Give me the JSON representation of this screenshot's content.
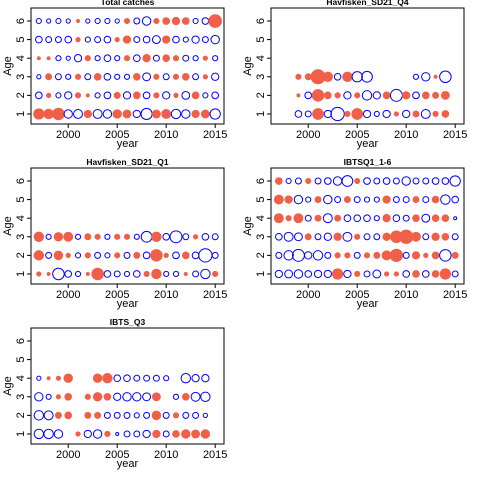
{
  "chart_data": [
    {
      "type": "bubble",
      "title": "Total catches",
      "xlabel": "year",
      "ylabel": "Age",
      "x": [
        1997,
        1998,
        1999,
        2000,
        2001,
        2002,
        2003,
        2004,
        2005,
        2006,
        2007,
        2008,
        2009,
        2010,
        2011,
        2012,
        2013,
        2014,
        2015
      ],
      "ages": [
        1,
        2,
        3,
        4,
        5,
        6
      ],
      "values": [
        [
          1.2,
          1.0,
          1.5,
          -0.8,
          -0.9,
          0.6,
          -0.9,
          -0.8,
          0.8,
          0.7,
          -0.6,
          -1.4,
          0.7,
          0.9,
          -1.0,
          -0.8,
          0.6,
          0.7,
          -1.2
        ],
        [
          -0.5,
          0.2,
          -0.3,
          -0.6,
          0.3,
          0.1,
          -0.3,
          -0.5,
          0.4,
          -0.6,
          0.5,
          -0.5,
          0.3,
          -0.6,
          0.2,
          -0.7,
          0.5,
          -0.3,
          -0.5
        ],
        [
          -0.2,
          0.4,
          -0.4,
          -0.3,
          0.3,
          -0.4,
          0.5,
          -0.5,
          -0.3,
          -0.3,
          0.5,
          -0.7,
          0.3,
          -0.4,
          0.3,
          0.5,
          -0.4,
          0.2,
          -0.6
        ],
        [
          0.1,
          0.1,
          -0.3,
          -0.2,
          -0.6,
          0.3,
          -0.3,
          -0.5,
          -0.3,
          0.3,
          -0.5,
          0.6,
          -0.4,
          0.5,
          0.3,
          -0.4,
          -0.3,
          0.2,
          -0.3
        ],
        [
          -0.5,
          -0.4,
          -0.4,
          -0.5,
          0.2,
          -0.3,
          -0.4,
          -0.5,
          0.2,
          0.6,
          -0.4,
          -0.5,
          -0.7,
          0.6,
          -0.5,
          -0.3,
          -0.6,
          -0.4,
          -0.8
        ],
        [
          -0.3,
          -0.2,
          -0.3,
          -0.2,
          0.1,
          -0.2,
          -0.3,
          -0.3,
          -0.2,
          0.3,
          -0.4,
          -0.8,
          0.3,
          0.5,
          0.6,
          0.5,
          -0.3,
          -0.5,
          1.8
        ]
      ],
      "xlim": [
        1996.2,
        2015.9
      ],
      "ylim": [
        0.46,
        6.7
      ],
      "xticks": [
        2000,
        2005,
        2010,
        2015
      ],
      "yticks": [
        1,
        2,
        3,
        4,
        5,
        6
      ],
      "pos_color": "#f06048",
      "neg_color": "#0000ff"
    },
    {
      "type": "bubble",
      "title": "Havfisken_SD21_Q4",
      "xlabel": "year",
      "ylabel": "Age",
      "x": [
        1999,
        2000,
        2001,
        2002,
        2003,
        2004,
        2005,
        2006,
        2007,
        2008,
        2009,
        2010,
        2011,
        2012,
        2013,
        2014
      ],
      "ages": [
        1,
        2,
        3
      ],
      "values": [
        [
          -0.5,
          -0.4,
          1.3,
          -0.6,
          -2.0,
          0.3,
          1.3,
          -0.6,
          -0.3,
          -0.6,
          0.2,
          -0.6,
          0.4,
          -0.9,
          0.3,
          0.5
        ],
        [
          0.1,
          -0.5,
          1.5,
          0.5,
          0.3,
          -0.6,
          0.3,
          -1.0,
          -0.6,
          0.5,
          -1.6,
          0.6,
          -0.5,
          0.5,
          0.4,
          0.7
        ],
        [
          0.3,
          0.4,
          2.2,
          1.0,
          -0.5,
          1.0,
          -1.2,
          -1.3,
          null,
          null,
          null,
          null,
          -0.3,
          -0.8,
          0.1,
          -1.5
        ]
      ],
      "xlim": [
        1996.2,
        2015.9
      ],
      "ylim": [
        0.46,
        6.7
      ],
      "xticks": [
        2000,
        2005,
        2010,
        2015
      ],
      "yticks": [
        1,
        2,
        3,
        4,
        5,
        6
      ],
      "pos_color": "#f06048",
      "neg_color": "#0000ff"
    },
    {
      "type": "bubble",
      "title": "Havfisken_SD21_Q1",
      "xlabel": "year",
      "ylabel": "Age",
      "x": [
        1997,
        1998,
        1999,
        2000,
        2001,
        2002,
        2003,
        2004,
        2005,
        2006,
        2007,
        2008,
        2009,
        2010,
        2011,
        2012,
        2013,
        2014,
        2015
      ],
      "ages": [
        1,
        2,
        3
      ],
      "values": [
        [
          0.2,
          0.1,
          -1.5,
          -0.5,
          -0.3,
          0.1,
          1.5,
          -0.5,
          -0.4,
          -0.3,
          -0.5,
          0.3,
          1.0,
          -0.3,
          -0.3,
          0.1,
          -0.4,
          -1.0,
          0.3
        ],
        [
          1.0,
          -0.4,
          0.8,
          0.2,
          -0.3,
          0.3,
          -0.4,
          -0.3,
          0.3,
          -0.4,
          0.4,
          -0.5,
          1.5,
          0.2,
          -0.5,
          0.5,
          -0.5,
          -2.0,
          -0.4
        ],
        [
          1.0,
          -0.3,
          0.8,
          0.9,
          -0.3,
          0.4,
          0.3,
          -0.3,
          0.3,
          0.3,
          -0.3,
          -1.3,
          1.0,
          -0.5,
          -1.6,
          -0.4,
          0.2,
          -0.5,
          -0.4
        ]
      ],
      "xlim": [
        1996.2,
        2015.9
      ],
      "ylim": [
        0.46,
        6.7
      ],
      "xticks": [
        2000,
        2005,
        2010,
        2015
      ],
      "yticks": [
        1,
        2,
        3,
        4,
        5,
        6
      ],
      "pos_color": "#f06048",
      "neg_color": "#0000ff"
    },
    {
      "type": "bubble",
      "title": "IBTSQ1_1-6",
      "xlabel": "year",
      "ylabel": "Age",
      "x": [
        1997,
        1998,
        1999,
        2000,
        2001,
        2002,
        2003,
        2004,
        2005,
        2006,
        2007,
        2008,
        2009,
        2010,
        2011,
        2012,
        2013,
        2014,
        2015
      ],
      "ages": [
        1,
        2,
        3,
        4,
        5,
        6
      ],
      "values": [
        [
          -0.6,
          -0.7,
          -0.8,
          -0.5,
          -0.6,
          -0.6,
          1.2,
          -0.6,
          0.3,
          -0.4,
          -0.7,
          0.2,
          0.2,
          -0.5,
          0.5,
          -0.5,
          0.5,
          1.2,
          -0.4
        ],
        [
          -0.4,
          -1.0,
          -1.6,
          -0.6,
          -1.0,
          -0.4,
          0.3,
          0.3,
          -0.4,
          0.3,
          0.4,
          0.9,
          1.7,
          -0.4,
          0.6,
          0.2,
          0.5,
          -1.5,
          0.4
        ],
        [
          -0.5,
          -0.9,
          -0.7,
          0.4,
          -0.4,
          -0.6,
          0.6,
          -0.9,
          0.3,
          -0.4,
          -0.4,
          0.6,
          1.5,
          2.0,
          0.9,
          -0.4,
          0.6,
          0.5,
          -0.4
        ],
        [
          0.9,
          0.3,
          0.9,
          -0.4,
          0.4,
          -0.9,
          0.4,
          -0.5,
          -0.5,
          -0.5,
          -0.3,
          0.6,
          -0.5,
          -0.4,
          0.5,
          -0.7,
          0.5,
          0.5,
          -0.1
        ],
        [
          0.9,
          0.6,
          -0.8,
          -0.3,
          0.4,
          -0.8,
          -0.4,
          0.4,
          -0.4,
          -0.3,
          -0.3,
          0.6,
          -0.4,
          -0.4,
          0.4,
          -0.4,
          0.5,
          -1.0,
          -0.5
        ],
        [
          0.5,
          -0.3,
          -0.4,
          0.3,
          -0.4,
          -0.5,
          -0.8,
          -1.3,
          0.3,
          -0.5,
          -0.4,
          -0.5,
          -0.4,
          -0.8,
          -0.4,
          -0.4,
          -0.5,
          -0.5,
          -1.2
        ]
      ],
      "xlim": [
        1996.2,
        2015.9
      ],
      "ylim": [
        0.46,
        6.7
      ],
      "xticks": [
        2000,
        2005,
        2010,
        2015
      ],
      "yticks": [
        1,
        2,
        3,
        4,
        5,
        6
      ],
      "pos_color": "#f06048",
      "neg_color": "#0000ff"
    },
    {
      "type": "bubble",
      "title": "IBTS_Q3",
      "xlabel": "year",
      "ylabel": "Age",
      "x": [
        1997,
        1998,
        1999,
        2000,
        2001,
        2002,
        2003,
        2004,
        2005,
        2006,
        2007,
        2008,
        2009,
        2010,
        2011,
        2012,
        2013,
        2014
      ],
      "ages": [
        1,
        2,
        3,
        4
      ],
      "values": [
        [
          -1.0,
          -1.0,
          -0.8,
          null,
          0.2,
          -0.6,
          -0.8,
          0.3,
          -0.1,
          -0.4,
          -0.4,
          -0.6,
          0.6,
          -0.4,
          0.5,
          0.8,
          0.7,
          0.8
        ],
        [
          -1.0,
          -0.9,
          0.4,
          0.5,
          null,
          0.4,
          0.4,
          -0.4,
          -0.4,
          -0.4,
          -0.3,
          -0.4,
          0.8,
          -0.4,
          0.3,
          -0.4,
          -0.4,
          -0.2
        ],
        [
          -0.8,
          -0.3,
          0.2,
          0.5,
          null,
          0.3,
          0.8,
          0.5,
          -0.6,
          -0.8,
          -0.8,
          -0.7,
          0.7,
          null,
          -0.3,
          0.5,
          -0.9,
          -1.0
        ],
        [
          -0.2,
          0.1,
          0.2,
          0.8,
          null,
          null,
          0.8,
          1.0,
          -0.5,
          -0.5,
          -0.4,
          -0.4,
          -0.4,
          -0.3,
          null,
          -1.0,
          -0.6,
          -0.6
        ]
      ],
      "xlim": [
        1996.2,
        2015.9
      ],
      "ylim": [
        0.46,
        6.7
      ],
      "xticks": [
        2000,
        2005,
        2010,
        2015
      ],
      "yticks": [
        1,
        2,
        3,
        4,
        5,
        6
      ],
      "pos_color": "#f06048",
      "neg_color": "#0000ff"
    }
  ]
}
